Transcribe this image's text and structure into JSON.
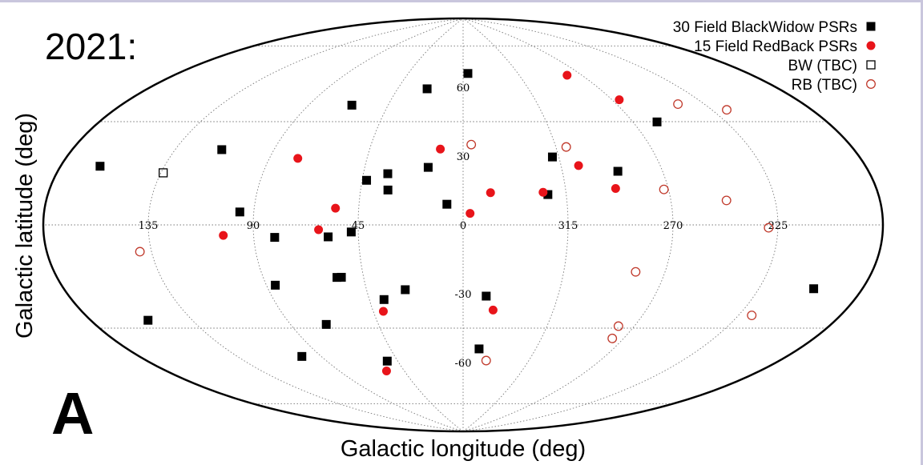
{
  "chart_data": {
    "type": "scatter",
    "projection": "aitoff",
    "annotation_year": "2021:",
    "panel_label": "A",
    "xlabel": "Galactic longitude (deg)",
    "ylabel": "Galactic latitude (deg)",
    "x_ticks": [
      "225",
      "270",
      "315",
      "0",
      "45",
      "90",
      "135"
    ],
    "y_ticks": [
      "60",
      "30",
      "-30",
      "-60"
    ],
    "grid": true,
    "legend_position": "top-right",
    "series": [
      {
        "name": "30 Field BlackWidow PSRs",
        "marker": "filled-square",
        "color": "#000000",
        "points": [
          {
            "l": 356,
            "b": 66
          },
          {
            "l": 25,
            "b": 59
          },
          {
            "l": 66,
            "b": 50
          },
          {
            "l": 114,
            "b": 28
          },
          {
            "l": 258,
            "b": 40
          },
          {
            "l": 290,
            "b": 22
          },
          {
            "l": 318,
            "b": 29
          },
          {
            "l": 16,
            "b": 25
          },
          {
            "l": 34,
            "b": 22
          },
          {
            "l": 43,
            "b": 19
          },
          {
            "l": 163,
            "b": 18
          },
          {
            "l": 33,
            "b": 15
          },
          {
            "l": 323,
            "b": 13
          },
          {
            "l": 7,
            "b": 9
          },
          {
            "l": 96,
            "b": 5
          },
          {
            "l": 48,
            "b": -3
          },
          {
            "l": 58,
            "b": -5
          },
          {
            "l": 81,
            "b": -5
          },
          {
            "l": 201,
            "b": -20
          },
          {
            "l": 55,
            "b": -22
          },
          {
            "l": 57,
            "b": -22
          },
          {
            "l": 86,
            "b": -24
          },
          {
            "l": 349,
            "b": -31
          },
          {
            "l": 27,
            "b": -28
          },
          {
            "l": 38,
            "b": -32
          },
          {
            "l": 155,
            "b": -31
          },
          {
            "l": 72,
            "b": -41
          },
          {
            "l": 350,
            "b": -54
          },
          {
            "l": 52,
            "b": -58
          },
          {
            "l": 101,
            "b": -52
          }
        ]
      },
      {
        "name": "15 Field RedBack PSRs",
        "marker": "filled-circle",
        "color": "#e8141a",
        "points": [
          {
            "l": 280,
            "b": 62
          },
          {
            "l": 266,
            "b": 50
          },
          {
            "l": 11,
            "b": 33
          },
          {
            "l": 77,
            "b": 27
          },
          {
            "l": 307,
            "b": 25
          },
          {
            "l": 293,
            "b": 15
          },
          {
            "l": 325,
            "b": 14
          },
          {
            "l": 348,
            "b": 14
          },
          {
            "l": 357,
            "b": 5
          },
          {
            "l": 55,
            "b": 7
          },
          {
            "l": 62,
            "b": -2
          },
          {
            "l": 103,
            "b": -4
          },
          {
            "l": 345,
            "b": -37
          },
          {
            "l": 40,
            "b": -37
          },
          {
            "l": 58,
            "b": -62
          }
        ]
      },
      {
        "name": "BW (TBC)",
        "marker": "open-square",
        "color": "#000000",
        "points": [
          {
            "l": 134,
            "b": 18
          }
        ]
      },
      {
        "name": "RB (TBC)",
        "marker": "open-circle",
        "color": "#c0392b",
        "points": [
          {
            "l": 218,
            "b": 40
          },
          {
            "l": 238,
            "b": 45
          },
          {
            "l": 310,
            "b": 33
          },
          {
            "l": 356,
            "b": 35
          },
          {
            "l": 246,
            "b": 9
          },
          {
            "l": 272,
            "b": 14
          },
          {
            "l": 229,
            "b": -1
          },
          {
            "l": 140,
            "b": -9
          },
          {
            "l": 283,
            "b": -19
          },
          {
            "l": 219,
            "b": -31
          },
          {
            "l": 278,
            "b": -41
          },
          {
            "l": 276,
            "b": -46
          },
          {
            "l": 344,
            "b": -59
          }
        ]
      }
    ]
  }
}
